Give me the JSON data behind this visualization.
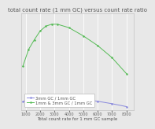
{
  "title": "total count rate (1 mm GC) versus count rate ratio",
  "xlabel": "Total count rate for 1 mm GC sample",
  "x_ticks": [
    1000,
    2000,
    3000,
    4000,
    5000,
    6000,
    7000,
    8000
  ],
  "xlim": [
    700,
    8500
  ],
  "ylim": [
    0.75,
    2.75
  ],
  "blue_x": [
    800,
    1200,
    1600,
    2000,
    2400,
    2800,
    3200,
    4000,
    5000,
    6000,
    7000,
    8000
  ],
  "blue_y": [
    0.92,
    0.97,
    1.0,
    1.02,
    1.03,
    1.03,
    1.02,
    1.0,
    0.97,
    0.93,
    0.88,
    0.82
  ],
  "green_x": [
    800,
    1200,
    1600,
    2000,
    2400,
    2800,
    3200,
    4000,
    5000,
    6000,
    7000,
    8000
  ],
  "green_y": [
    1.65,
    2.0,
    2.2,
    2.38,
    2.48,
    2.52,
    2.52,
    2.45,
    2.28,
    2.08,
    1.83,
    1.5
  ],
  "blue_color": "#8888dd",
  "green_color": "#55bb55",
  "blue_label": "3mm GC / 1mm GC",
  "green_label": "1mm & 3mm GC / 1mm GC",
  "title_fontsize": 5.0,
  "label_fontsize": 4.0,
  "legend_fontsize": 3.8,
  "tick_fontsize": 3.5,
  "bg_color": "#e8e8e8",
  "grid_color": "#ffffff"
}
